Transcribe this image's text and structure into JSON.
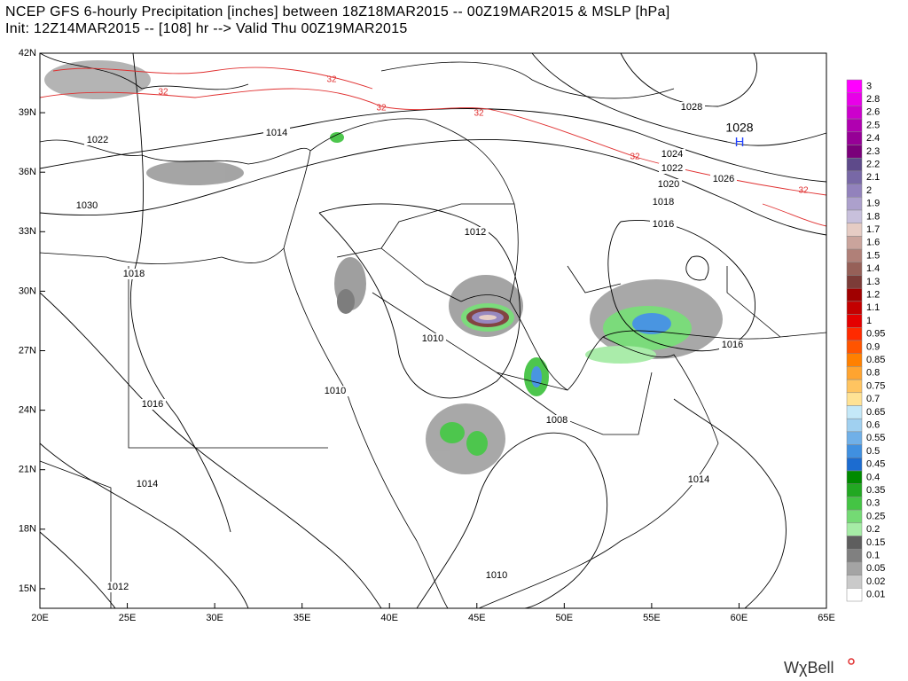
{
  "header": {
    "title": "NCEP GFS 6-hourly Precipitation [inches] between 18Z18MAR2015 -- 00Z19MAR2015 & MSLP [hPa]",
    "subtitle": "Init: 12Z14MAR2015 -- [108] hr --> Valid Thu 00Z19MAR2015"
  },
  "map": {
    "lon_labels": [
      {
        "value": 20,
        "label": "20E"
      },
      {
        "value": 25,
        "label": "25E"
      },
      {
        "value": 30,
        "label": "30E"
      },
      {
        "value": 35,
        "label": "35E"
      },
      {
        "value": 40,
        "label": "40E"
      },
      {
        "value": 45,
        "label": "45E"
      },
      {
        "value": 50,
        "label": "50E"
      },
      {
        "value": 55,
        "label": "55E"
      },
      {
        "value": 60,
        "label": "60E"
      },
      {
        "value": 65,
        "label": "65E"
      }
    ],
    "lat_labels": [
      {
        "value": 42,
        "label": "42N"
      },
      {
        "value": 39,
        "label": "39N"
      },
      {
        "value": 36,
        "label": "36N"
      },
      {
        "value": 33,
        "label": "33N"
      },
      {
        "value": 30,
        "label": "30N"
      },
      {
        "value": 27,
        "label": "27N"
      },
      {
        "value": 24,
        "label": "24N"
      },
      {
        "value": 21,
        "label": "21N"
      },
      {
        "value": 18,
        "label": "18N"
      },
      {
        "value": 15,
        "label": "15N"
      }
    ],
    "isobar_labels": [
      "1028",
      "1022",
      "1014",
      "1030",
      "1024",
      "1022",
      "1020",
      "1018",
      "1016",
      "1026",
      "1012",
      "1018",
      "1010",
      "1016",
      "1010",
      "1016",
      "1008",
      "1014",
      "1014",
      "1010",
      "1012"
    ],
    "thickness_labels": [
      "32",
      "32",
      "32",
      "32",
      "32",
      "32"
    ],
    "high": {
      "pressure": "1028",
      "letter": "H"
    }
  },
  "colorbar": [
    {
      "label": 3,
      "color": "#ff00ff"
    },
    {
      "label": 2.8,
      "color": "#e800e8"
    },
    {
      "label": 2.6,
      "color": "#cc00cc"
    },
    {
      "label": 2.5,
      "color": "#b000b0"
    },
    {
      "label": 2.4,
      "color": "#960096"
    },
    {
      "label": 2.3,
      "color": "#7a007a"
    },
    {
      "label": 2.2,
      "color": "#5e4a8a"
    },
    {
      "label": 2.1,
      "color": "#7868a6"
    },
    {
      "label": 2,
      "color": "#9282bc"
    },
    {
      "label": 1.9,
      "color": "#aca0cc"
    },
    {
      "label": 1.8,
      "color": "#c8c0dc"
    },
    {
      "label": 1.7,
      "color": "#e6ccc4"
    },
    {
      "label": 1.6,
      "color": "#caa49c"
    },
    {
      "label": 1.5,
      "color": "#b08078"
    },
    {
      "label": 1.4,
      "color": "#966058"
    },
    {
      "label": 1.3,
      "color": "#7c3c38"
    },
    {
      "label": 1.2,
      "color": "#a00000"
    },
    {
      "label": 1.1,
      "color": "#c40000"
    },
    {
      "label": 1,
      "color": "#e40000"
    },
    {
      "label": 0.95,
      "color": "#ff2a00"
    },
    {
      "label": 0.9,
      "color": "#ff5400"
    },
    {
      "label": 0.85,
      "color": "#ff8000"
    },
    {
      "label": 0.8,
      "color": "#ffa430"
    },
    {
      "label": 0.75,
      "color": "#ffc460"
    },
    {
      "label": 0.7,
      "color": "#ffe294"
    },
    {
      "label": 0.65,
      "color": "#c4e8f8"
    },
    {
      "label": 0.6,
      "color": "#a0d0f0"
    },
    {
      "label": 0.55,
      "color": "#70b0e8"
    },
    {
      "label": 0.5,
      "color": "#4090e0"
    },
    {
      "label": 0.45,
      "color": "#1c6cd0"
    },
    {
      "label": 0.4,
      "color": "#008a00"
    },
    {
      "label": 0.35,
      "color": "#22a822"
    },
    {
      "label": 0.3,
      "color": "#44c444"
    },
    {
      "label": 0.25,
      "color": "#74da74"
    },
    {
      "label": 0.2,
      "color": "#a6eca6"
    },
    {
      "label": 0.15,
      "color": "#5e5e5e"
    },
    {
      "label": 0.1,
      "color": "#808080"
    },
    {
      "label": 0.05,
      "color": "#a4a4a4"
    },
    {
      "label": 0.02,
      "color": "#cacaca"
    },
    {
      "label": 0.01,
      "color": "#ffffff"
    }
  ],
  "footer": {
    "logo": "WχBell"
  }
}
